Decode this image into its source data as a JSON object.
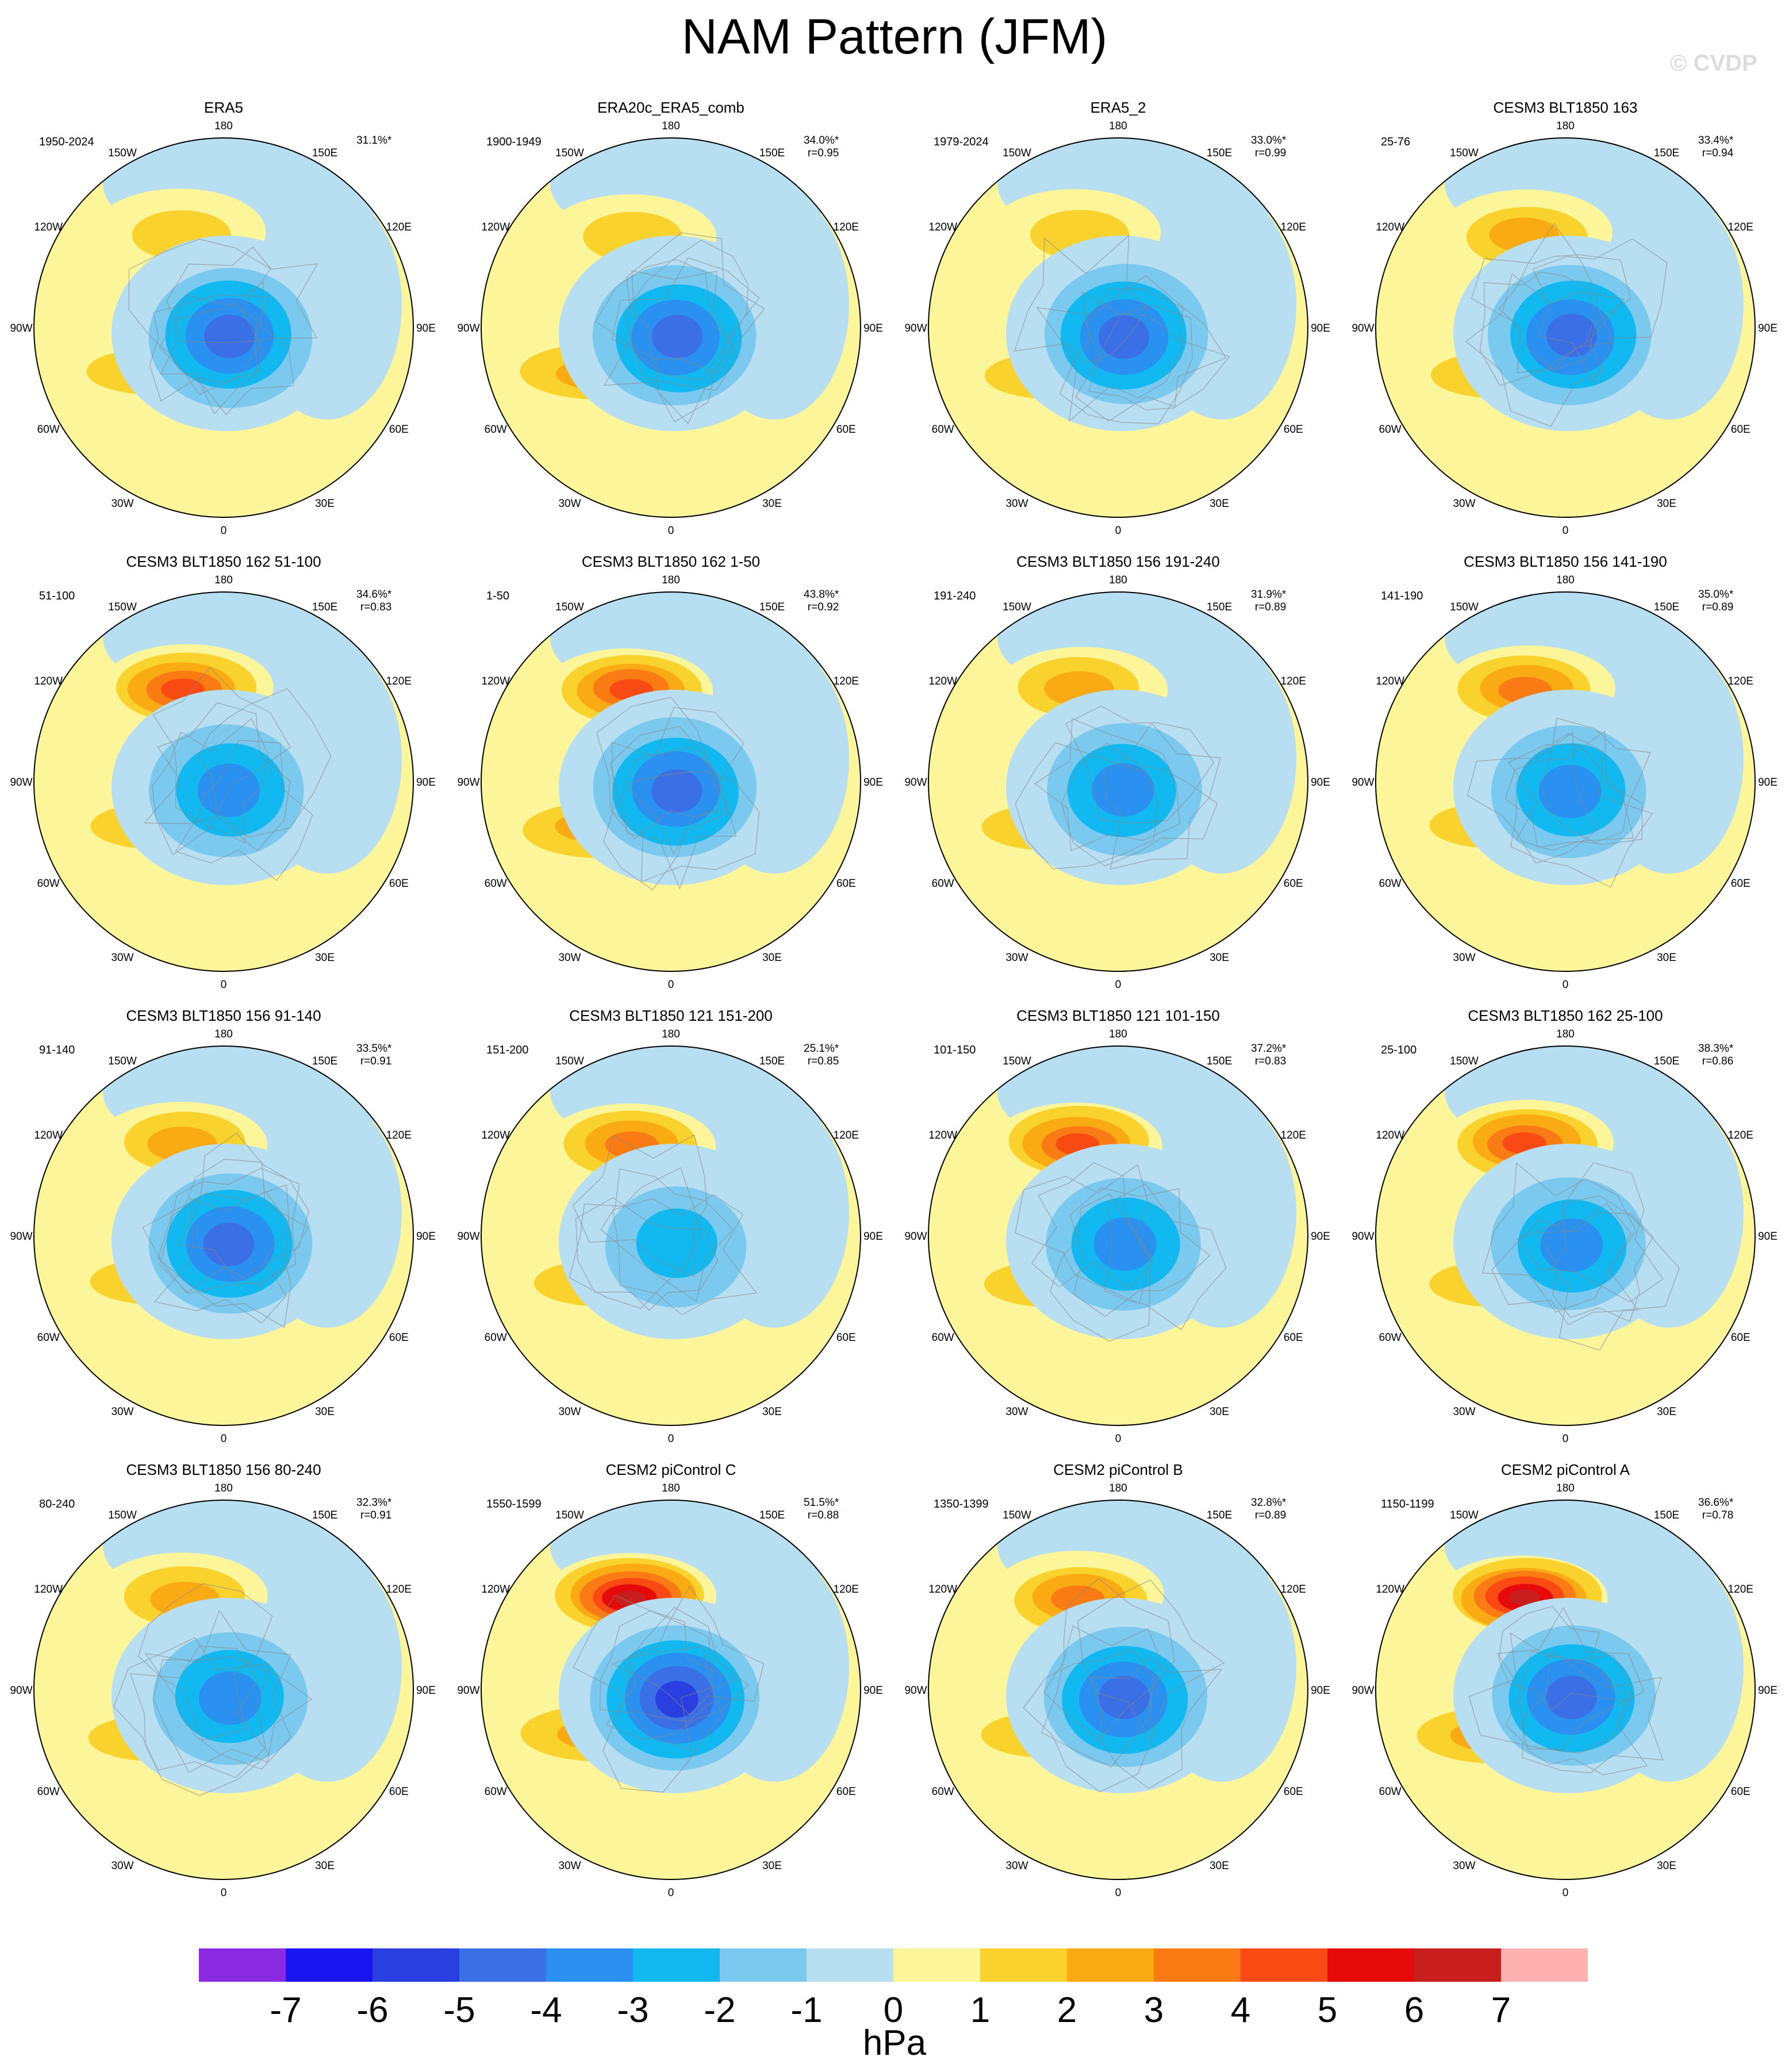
{
  "title": "NAM Pattern (JFM)",
  "copyright": "© CVDP",
  "longitude_labels": [
    "180",
    "150E",
    "120E",
    "90E",
    "60E",
    "30E",
    "0",
    "30W",
    "60W",
    "90W",
    "120W",
    "150W"
  ],
  "colorbar": {
    "unit": "hPa",
    "tick_labels": [
      "-7",
      "-6",
      "-5",
      "-4",
      "-3",
      "-2",
      "-1",
      "0",
      "1",
      "2",
      "3",
      "4",
      "5",
      "6",
      "7"
    ],
    "colors": [
      "#8a2be2",
      "#1a14f0",
      "#2a3fe0",
      "#3a6fe6",
      "#2a91f0",
      "#12b8f0",
      "#7cc9f0",
      "#b8def2",
      "#fdf59a",
      "#fad22e",
      "#faab14",
      "#fa7a14",
      "#fa4a14",
      "#e60a0a",
      "#c81e1e",
      "#ffb0b0"
    ]
  },
  "chart_data": {
    "type": "heatmap",
    "variable": "NAM Pattern (JFM)",
    "unit": "hPa",
    "levels": [
      -7,
      -6,
      -5,
      -4,
      -3,
      -2,
      -1,
      0,
      1,
      2,
      3,
      4,
      5,
      6,
      7
    ],
    "panels": [
      {
        "name": "ERA5",
        "years": "1950-2024",
        "pct_var": "31.1%*",
        "r": "",
        "arctic_min": -5.5,
        "pacific_max": 2.0,
        "atlantic_max": 2.6
      },
      {
        "name": "ERA20c_ERA5_comb",
        "years": "1900-1949",
        "pct_var": "34.0%*",
        "r": "r=0.95",
        "arctic_min": -5.5,
        "pacific_max": 2.2,
        "atlantic_max": 3.2
      },
      {
        "name": "ERA5_2",
        "years": "1979-2024",
        "pct_var": "33.0%*",
        "r": "r=0.99",
        "arctic_min": -5.6,
        "pacific_max": 2.3,
        "atlantic_max": 2.8
      },
      {
        "name": "CESM3 BLT1850 163",
        "years": "25-76",
        "pct_var": "33.4%*",
        "r": "r=0.94",
        "arctic_min": -5.4,
        "pacific_max": 3.2,
        "atlantic_max": 2.0
      },
      {
        "name": "CESM3 BLT1850 162 51-100",
        "years": "51-100",
        "pct_var": "34.6%*",
        "r": "r=0.83",
        "arctic_min": -4.6,
        "pacific_max": 5.3,
        "atlantic_max": 2.4
      },
      {
        "name": "CESM3 BLT1850 162 1-50",
        "years": "1-50",
        "pct_var": "43.8%*",
        "r": "r=0.92",
        "arctic_min": -5.4,
        "pacific_max": 5.2,
        "atlantic_max": 3.0
      },
      {
        "name": "CESM3 BLT1850 156 191-240",
        "years": "191-240",
        "pct_var": "31.9%*",
        "r": "r=0.89",
        "arctic_min": -4.6,
        "pacific_max": 3.3,
        "atlantic_max": 2.3
      },
      {
        "name": "CESM3 BLT1850 156 141-190",
        "years": "141-190",
        "pct_var": "35.0%*",
        "r": "r=0.89",
        "arctic_min": -4.7,
        "pacific_max": 4.2,
        "atlantic_max": 2.6
      },
      {
        "name": "CESM3 BLT1850 156 91-140",
        "years": "91-140",
        "pct_var": "33.5%*",
        "r": "r=0.91",
        "arctic_min": -5.3,
        "pacific_max": 3.4,
        "atlantic_max": 2.6
      },
      {
        "name": "CESM3 BLT1850 121 151-200",
        "years": "151-200",
        "pct_var": "25.1%*",
        "r": "r=0.85",
        "arctic_min": -3.6,
        "pacific_max": 4.2,
        "atlantic_max": 2.7
      },
      {
        "name": "CESM3 BLT1850 121 101-150",
        "years": "101-150",
        "pct_var": "37.2%*",
        "r": "r=0.83",
        "arctic_min": -4.5,
        "pacific_max": 5.4,
        "atlantic_max": 2.6
      },
      {
        "name": "CESM3 BLT1850 162 25-100",
        "years": "25-100",
        "pct_var": "38.3%*",
        "r": "r=0.86",
        "arctic_min": -4.8,
        "pacific_max": 5.6,
        "atlantic_max": 2.4
      },
      {
        "name": "CESM3 BLT1850 156 80-240",
        "years": "80-240",
        "pct_var": "32.3%*",
        "r": "r=0.91",
        "arctic_min": -4.6,
        "pacific_max": 3.3,
        "atlantic_max": 2.3
      },
      {
        "name": "CESM2 piControl C",
        "years": "1550-1599",
        "pct_var": "51.5%*",
        "r": "r=0.88",
        "arctic_min": -6.6,
        "pacific_max": 7.6,
        "atlantic_max": 3.4
      },
      {
        "name": "CESM2 piControl B",
        "years": "1350-1399",
        "pct_var": "32.8%*",
        "r": "r=0.89",
        "arctic_min": -5.3,
        "pacific_max": 4.6,
        "atlantic_max": 2.4
      },
      {
        "name": "CESM2 piControl A",
        "years": "1150-1199",
        "pct_var": "36.6%*",
        "r": "r=0.78",
        "arctic_min": -5.6,
        "pacific_max": 7.4,
        "atlantic_max": 3.0
      }
    ]
  }
}
